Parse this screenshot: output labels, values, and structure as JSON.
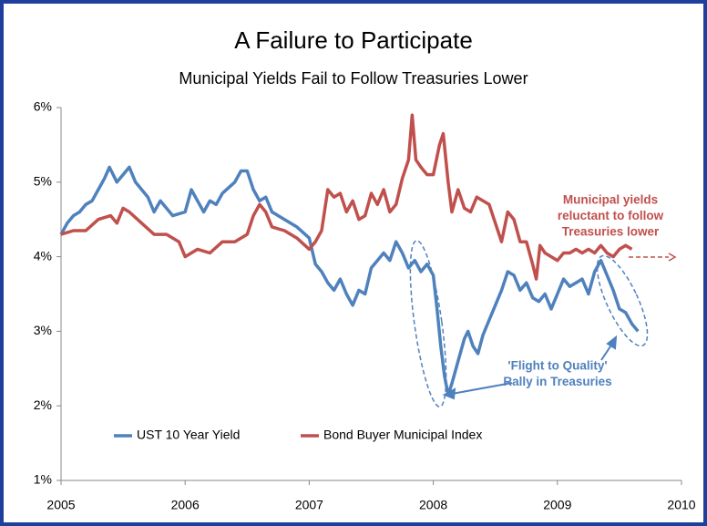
{
  "chart_data": {
    "type": "line",
    "title": "A Failure to Participate",
    "subtitle": "Municipal Yields Fail to Follow Treasuries Lower",
    "xlim": [
      2005,
      2010
    ],
    "xticks": [
      2005,
      2006,
      2007,
      2008,
      2009,
      2010
    ],
    "ylim": [
      1,
      6
    ],
    "yticks": [
      {
        "value": 1,
        "label": "1%"
      },
      {
        "value": 2,
        "label": "2%"
      },
      {
        "value": 3,
        "label": "3%"
      },
      {
        "value": 4,
        "label": "4%"
      },
      {
        "value": 5,
        "label": "5%"
      },
      {
        "value": 6,
        "label": "6%"
      }
    ],
    "grid": false,
    "legend": "bottom",
    "series": [
      {
        "name": "UST 10 Year Yield",
        "color": "#4f81bd",
        "x": [
          2005.0,
          2005.05,
          2005.1,
          2005.15,
          2005.2,
          2005.25,
          2005.3,
          2005.35,
          2005.39,
          2005.45,
          2005.5,
          2005.55,
          2005.6,
          2005.7,
          2005.75,
          2005.8,
          2005.9,
          2006.0,
          2006.05,
          2006.1,
          2006.15,
          2006.2,
          2006.25,
          2006.3,
          2006.4,
          2006.45,
          2006.5,
          2006.55,
          2006.6,
          2006.65,
          2006.7,
          2006.75,
          2006.8,
          2006.9,
          2007.0,
          2007.05,
          2007.1,
          2007.15,
          2007.2,
          2007.25,
          2007.3,
          2007.35,
          2007.4,
          2007.45,
          2007.5,
          2007.55,
          2007.6,
          2007.65,
          2007.7,
          2007.75,
          2007.8,
          2007.85,
          2007.9,
          2007.95,
          2008.0,
          2008.03,
          2008.06,
          2008.09,
          2008.12,
          2008.15,
          2008.2,
          2008.25,
          2008.28,
          2008.32,
          2008.36,
          2008.4,
          2008.45,
          2008.5,
          2008.55,
          2008.6,
          2008.65,
          2008.7,
          2008.75,
          2008.8,
          2008.85,
          2008.9,
          2008.95,
          2009.0,
          2009.05,
          2009.1,
          2009.15,
          2009.2,
          2009.25,
          2009.3,
          2009.35,
          2009.4,
          2009.45,
          2009.5,
          2009.55,
          2009.6,
          2009.65
        ],
        "values": [
          4.3,
          4.45,
          4.55,
          4.6,
          4.7,
          4.75,
          4.9,
          5.05,
          5.2,
          5.0,
          5.1,
          5.2,
          5.0,
          4.8,
          4.6,
          4.75,
          4.55,
          4.6,
          4.9,
          4.75,
          4.6,
          4.75,
          4.7,
          4.85,
          5.0,
          5.15,
          5.15,
          4.9,
          4.75,
          4.8,
          4.6,
          4.55,
          4.5,
          4.4,
          4.25,
          3.9,
          3.8,
          3.65,
          3.55,
          3.7,
          3.5,
          3.35,
          3.55,
          3.5,
          3.85,
          3.95,
          4.05,
          3.95,
          4.2,
          4.05,
          3.85,
          3.95,
          3.8,
          3.9,
          3.75,
          3.3,
          2.8,
          2.4,
          2.15,
          2.3,
          2.6,
          2.9,
          3.0,
          2.8,
          2.7,
          2.95,
          3.15,
          3.35,
          3.55,
          3.8,
          3.75,
          3.55,
          3.65,
          3.45,
          3.4,
          3.5,
          3.3,
          3.5,
          3.7,
          3.6,
          3.65,
          3.7,
          3.5,
          3.8,
          3.95,
          3.75,
          3.55,
          3.3,
          3.25,
          3.1,
          3.0
        ]
      },
      {
        "name": "Bond Buyer Municipal Index",
        "color": "#c0504d",
        "x": [
          2005.0,
          2005.1,
          2005.2,
          2005.3,
          2005.4,
          2005.45,
          2005.5,
          2005.55,
          2005.65,
          2005.75,
          2005.85,
          2005.95,
          2006.0,
          2006.1,
          2006.2,
          2006.3,
          2006.4,
          2006.5,
          2006.55,
          2006.6,
          2006.65,
          2006.7,
          2006.8,
          2006.9,
          2007.0,
          2007.05,
          2007.1,
          2007.15,
          2007.2,
          2007.25,
          2007.3,
          2007.35,
          2007.4,
          2007.45,
          2007.5,
          2007.55,
          2007.6,
          2007.65,
          2007.7,
          2007.75,
          2007.8,
          2007.83,
          2007.86,
          2007.9,
          2007.95,
          2008.0,
          2008.05,
          2008.08,
          2008.12,
          2008.15,
          2008.2,
          2008.25,
          2008.3,
          2008.35,
          2008.45,
          2008.5,
          2008.55,
          2008.6,
          2008.65,
          2008.7,
          2008.75,
          2008.8,
          2008.83,
          2008.86,
          2008.9,
          2008.95,
          2009.0,
          2009.05,
          2009.1,
          2009.15,
          2009.2,
          2009.25,
          2009.3,
          2009.35,
          2009.4,
          2009.45,
          2009.5,
          2009.55,
          2009.6
        ],
        "values": [
          4.3,
          4.35,
          4.35,
          4.5,
          4.55,
          4.45,
          4.65,
          4.6,
          4.45,
          4.3,
          4.3,
          4.2,
          4.0,
          4.1,
          4.05,
          4.2,
          4.2,
          4.3,
          4.55,
          4.7,
          4.6,
          4.4,
          4.35,
          4.25,
          4.1,
          4.2,
          4.35,
          4.9,
          4.8,
          4.85,
          4.6,
          4.75,
          4.5,
          4.55,
          4.85,
          4.7,
          4.9,
          4.6,
          4.7,
          5.05,
          5.3,
          5.9,
          5.3,
          5.2,
          5.1,
          5.1,
          5.5,
          5.65,
          5.0,
          4.6,
          4.9,
          4.65,
          4.6,
          4.8,
          4.7,
          4.45,
          4.2,
          4.6,
          4.5,
          4.2,
          4.2,
          3.9,
          3.7,
          4.15,
          4.05,
          4.0,
          3.95,
          4.05,
          4.05,
          4.1,
          4.05,
          4.1,
          4.05,
          4.15,
          4.05,
          4.0,
          4.1,
          4.15,
          4.1
        ]
      }
    ],
    "annotations": [
      {
        "text": [
          "Municipal yields",
          "reluctant to follow",
          "Treasuries lower"
        ],
        "color": "#c0504d"
      },
      {
        "text": [
          "'Flight to Quality'",
          "Rally in Treasuries"
        ],
        "color": "#4f81bd"
      }
    ]
  }
}
